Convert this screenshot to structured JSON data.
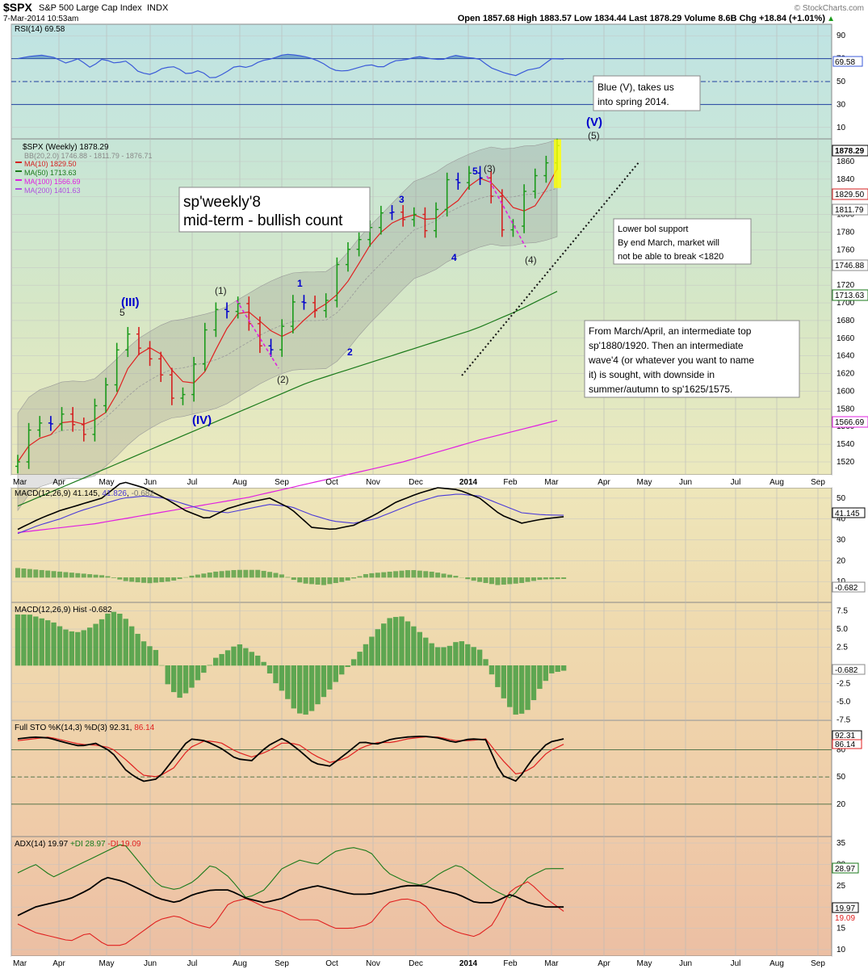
{
  "header": {
    "symbol": "$SPX",
    "name": "S&P 500 Large Cap Index",
    "exchange": "INDX",
    "date": "7-Mar-2014 10:53am",
    "quote": "Open 1857.68  High 1883.57  Low 1834.44  Last 1878.29  Volume 8.6B  Chg +18.84 (+1.01%)",
    "quote_change_arrow": "▲",
    "watermark": "© StockCharts.com"
  },
  "x_axis": {
    "labels": [
      "Mar",
      "Apr",
      "May",
      "Jun",
      "Jul",
      "Aug",
      "Sep",
      "Oct",
      "Nov",
      "Dec",
      "2014",
      "Feb",
      "Mar",
      "Apr",
      "May",
      "Jun",
      "Jul",
      "Aug",
      "Sep"
    ]
  },
  "rsi": {
    "legend": "RSI(14) 69.58",
    "last_label": "69.58",
    "ticks": [
      "90",
      "70",
      "50",
      "30",
      "10"
    ]
  },
  "price": {
    "legend": {
      "main": "$SPX (Weekly) 1878.29",
      "bb": "BB(20,2.0) 1746.88 - 1811.79 - 1876.71",
      "ma10": "MA(10) 1829.50",
      "ma50": "MA(50) 1713.63",
      "ma100": "MA(100) 1566.69",
      "ma200": "MA(200) 1401.63"
    },
    "right_labels": {
      "last": "1878.29",
      "ma10": "1829.50",
      "bb_mid": "1811.79",
      "bb_low": "1746.88",
      "ma50": "1713.63",
      "ma100": "1566.69"
    },
    "ticks": [
      "1860",
      "1840",
      "1820",
      "1800",
      "1780",
      "1760",
      "1740",
      "1720",
      "1700",
      "1680",
      "1660",
      "1640",
      "1620",
      "1600",
      "1580",
      "1560",
      "1540",
      "1520"
    ],
    "title_line1": "sp'weekly'8",
    "title_line2": "mid-term - bullish count",
    "note_blue_v": [
      "Blue (V), takes us",
      "into spring 2014."
    ],
    "note_support": [
      "Lower bol support",
      "By end March, market will",
      "not be able to break <1820"
    ],
    "note_top": [
      "From March/April, an intermediate top",
      "sp'1880/1920. Then an intermediate",
      "wave'4 (or whatever you want to name",
      "it) is sought, with downside in",
      "summer/autumn to sp'1625/1575."
    ],
    "wave_labels": {
      "III": "(III)",
      "five_a": "5",
      "IV": "(IV)",
      "one_b": "(1)",
      "two_b": "(2)",
      "one": "1",
      "two": "2",
      "three": "3",
      "four": "4",
      "five_b": "5",
      "three_b": "(3)",
      "four_b": "(4)",
      "V": "(V)",
      "five_c": "(5)"
    }
  },
  "macd": {
    "legend": "MACD(12,26,9) 41.145, 41.826, -0.682",
    "legend_parts": [
      "MACD(12,26,9) ",
      "41.145",
      ", ",
      "41.826",
      ", ",
      "-0.682"
    ],
    "last_label": "41.145",
    "hist_label": "-0.682",
    "ticks": [
      "50",
      "40",
      "30",
      "20",
      "10"
    ]
  },
  "hist": {
    "legend": "MACD(12,26,9) Hist -0.682",
    "last_label": "-0.682",
    "ticks": [
      "7.5",
      "5.0",
      "2.5",
      "-2.5",
      "-5.0",
      "-7.5"
    ]
  },
  "sto": {
    "legend_parts": [
      "Full STO %K(14,3) %D(3) ",
      "92.31",
      ", ",
      "86.14"
    ],
    "k_label": "92.31",
    "d_label": "86.14",
    "ticks": [
      "80",
      "50",
      "20"
    ]
  },
  "adx": {
    "legend_parts": [
      "ADX(14) 19.97 ",
      "+DI 28.97 ",
      "-DI 19.09"
    ],
    "adx_label": "19.97",
    "pdi_label": "28.97",
    "mdi_label": "19.09",
    "ticks": [
      "35",
      "30",
      "25",
      "20",
      "15",
      "10"
    ]
  },
  "colors": {
    "up_bar": "#1a9a1a",
    "down_bar": "#d42020",
    "neutral_bar": "#0000cc",
    "ma10": "#e02020",
    "ma50": "#1a7a1a",
    "ma100": "#e020e0",
    "rsi": "#3a5ad8",
    "wave_blue": "#0000cc"
  },
  "chart_data": [
    {
      "type": "bar",
      "title": "$SPX (Weekly)",
      "subtitle": "S&P 500 Large Cap Index",
      "ylim": [
        1510,
        1890
      ],
      "x": [
        "Mar",
        "Apr",
        "May",
        "Jun",
        "Jul",
        "Aug",
        "Sep",
        "Oct",
        "Nov",
        "Dec",
        "2014",
        "Feb",
        "Mar"
      ],
      "series": [
        {
          "name": "$SPX (Weekly)",
          "last": 1878.29,
          "open": 1857.68,
          "high": 1883.57,
          "low": 1834.44
        },
        {
          "name": "MA(10)",
          "last": 1829.5
        },
        {
          "name": "MA(50)",
          "last": 1713.63
        },
        {
          "name": "MA(100)",
          "last": 1566.69
        },
        {
          "name": "MA(200)",
          "last": 1401.63
        },
        {
          "name": "BB(20,2.0)",
          "last": [
            1746.88,
            1811.79,
            1876.71
          ]
        }
      ]
    },
    {
      "type": "line",
      "title": "RSI(14)",
      "ylim": [
        0,
        100
      ],
      "series": [
        {
          "name": "RSI(14)",
          "last": 69.58
        }
      ]
    },
    {
      "type": "line",
      "title": "MACD(12,26,9)",
      "series": [
        {
          "name": "MACD",
          "last": 41.145
        },
        {
          "name": "Signal",
          "last": 41.826
        },
        {
          "name": "Hist",
          "last": -0.682
        }
      ]
    },
    {
      "type": "bar",
      "title": "MACD(12,26,9) Hist",
      "series": [
        {
          "name": "Hist",
          "last": -0.682
        }
      ]
    },
    {
      "type": "line",
      "title": "Full STO %K(14,3) %D(3)",
      "ylim": [
        0,
        100
      ],
      "series": [
        {
          "name": "%K",
          "last": 92.31
        },
        {
          "name": "%D",
          "last": 86.14
        }
      ]
    },
    {
      "type": "line",
      "title": "ADX(14)",
      "series": [
        {
          "name": "ADX",
          "last": 19.97
        },
        {
          "name": "+DI",
          "last": 28.97
        },
        {
          "name": "-DI",
          "last": 19.09
        }
      ]
    }
  ]
}
